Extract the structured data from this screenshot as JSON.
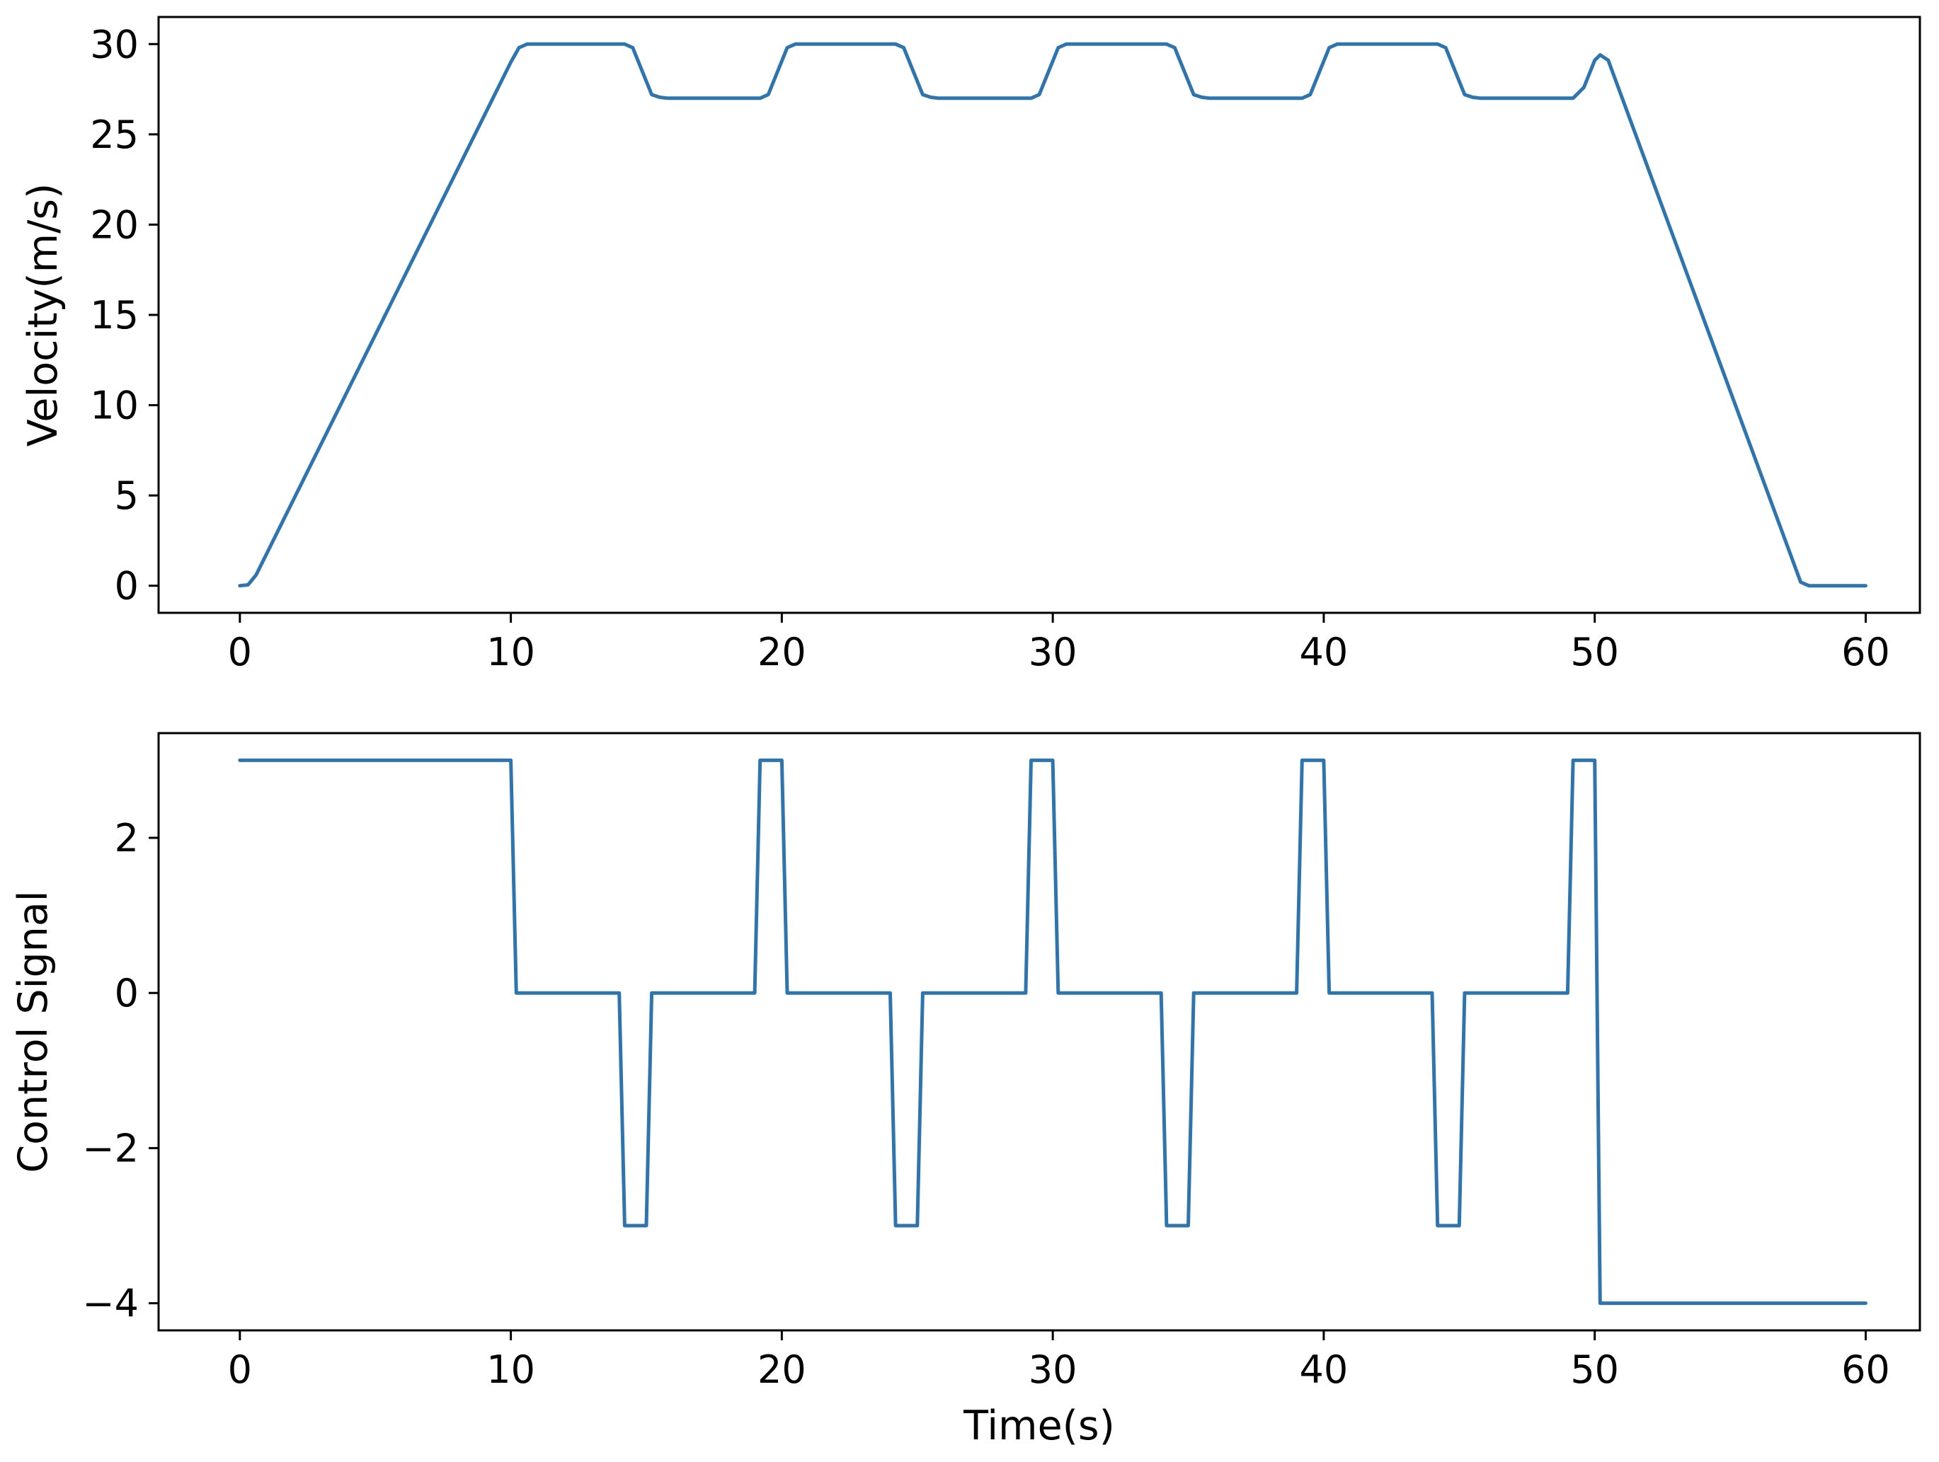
{
  "chart_data": [
    {
      "type": "line",
      "title": "",
      "xlabel": "",
      "ylabel": "Velocity(m/s)",
      "xlim": [
        -3,
        62
      ],
      "ylim": [
        -1.5,
        31.5
      ],
      "xticks": [
        0,
        10,
        20,
        30,
        40,
        50,
        60
      ],
      "yticks": [
        0,
        5,
        10,
        15,
        20,
        25,
        30
      ],
      "xtick_labels": [
        "0",
        "10",
        "20",
        "30",
        "40",
        "50",
        "60"
      ],
      "ytick_labels": [
        "0",
        "5",
        "10",
        "15",
        "20",
        "25",
        "30"
      ],
      "grid": false,
      "legend": "none",
      "color": "#2e75b0",
      "series": [
        {
          "x": [
            0,
            0.3,
            0.6,
            10.0,
            10.3,
            10.6,
            14.2,
            14.5,
            15.2,
            15.5,
            15.8,
            19.2,
            19.5,
            20.2,
            20.5,
            20.8,
            24.2,
            24.5,
            25.2,
            25.5,
            25.8,
            29.2,
            29.5,
            30.2,
            30.5,
            30.8,
            34.2,
            34.5,
            35.2,
            35.5,
            35.8,
            39.2,
            39.5,
            40.2,
            40.5,
            40.8,
            44.2,
            44.5,
            45.2,
            45.5,
            45.8,
            49.2,
            49.6,
            50.0,
            50.2,
            50.5,
            57.6,
            57.9,
            60
          ],
          "y": [
            0,
            0.05,
            0.6,
            29.0,
            29.8,
            30.0,
            30.0,
            29.8,
            27.2,
            27.05,
            27.0,
            27.0,
            27.2,
            29.8,
            30.0,
            30.0,
            30.0,
            29.8,
            27.2,
            27.05,
            27.0,
            27.0,
            27.2,
            29.8,
            30.0,
            30.0,
            30.0,
            29.8,
            27.2,
            27.05,
            27.0,
            27.0,
            27.2,
            29.8,
            30.0,
            30.0,
            30.0,
            29.8,
            27.2,
            27.05,
            27.0,
            27.0,
            27.6,
            29.1,
            29.4,
            29.1,
            0.2,
            0,
            0
          ]
        }
      ]
    },
    {
      "type": "line",
      "title": "",
      "xlabel": "Time(s)",
      "ylabel": "Control Signal",
      "xlim": [
        -3,
        62
      ],
      "ylim": [
        -4.35,
        3.35
      ],
      "xticks": [
        0,
        10,
        20,
        30,
        40,
        50,
        60
      ],
      "yticks": [
        -4,
        -2,
        0,
        2
      ],
      "xtick_labels": [
        "0",
        "10",
        "20",
        "30",
        "40",
        "50",
        "60"
      ],
      "ytick_labels": [
        "−4",
        "−2",
        "0",
        "2"
      ],
      "grid": false,
      "legend": "none",
      "color": "#2e75b0",
      "series": [
        {
          "x": [
            0,
            10.0,
            10.2,
            14.0,
            14.2,
            15.0,
            15.2,
            19.0,
            19.2,
            20.0,
            20.2,
            24.0,
            24.2,
            25.0,
            25.2,
            29.0,
            29.2,
            30.0,
            30.2,
            34.0,
            34.2,
            35.0,
            35.2,
            39.0,
            39.2,
            40.0,
            40.2,
            44.0,
            44.2,
            45.0,
            45.2,
            49.0,
            49.2,
            50.0,
            50.2,
            60
          ],
          "y": [
            3,
            3,
            0,
            0,
            -3,
            -3,
            0,
            0,
            3,
            3,
            0,
            0,
            -3,
            -3,
            0,
            0,
            3,
            3,
            0,
            0,
            -3,
            -3,
            0,
            0,
            3,
            3,
            0,
            0,
            -3,
            -3,
            0,
            0,
            3,
            3,
            -4,
            -4
          ]
        }
      ]
    }
  ]
}
